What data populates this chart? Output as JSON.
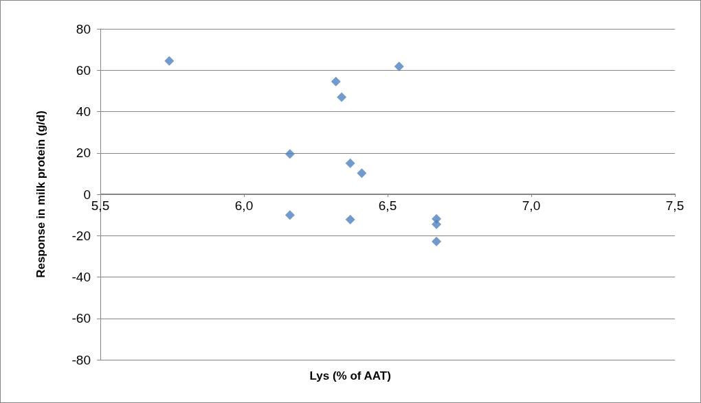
{
  "chart_data": {
    "type": "scatter",
    "xlabel": "Lys (% of AAT)",
    "ylabel": "Response in milk protein (g/d)",
    "x": [
      5.74,
      6.16,
      6.16,
      6.32,
      6.34,
      6.37,
      6.37,
      6.41,
      6.54,
      6.67,
      6.67,
      6.67
    ],
    "values": [
      64.5,
      19.5,
      -10,
      54.5,
      47,
      15,
      -12.2,
      10.2,
      61.8,
      -11.9,
      -14.5,
      -22.8
    ],
    "color": "#4f81bd",
    "marker": "diamond",
    "grid": "y",
    "xlim": [
      5.5,
      7.5
    ],
    "xticks": [
      {
        "value": 5.5,
        "label": "5,5"
      },
      {
        "value": 6.0,
        "label": "6,0"
      },
      {
        "value": 6.5,
        "label": "6,5"
      },
      {
        "value": 7.0,
        "label": "7,0"
      },
      {
        "value": 7.5,
        "label": "7,5"
      }
    ],
    "ylim": [
      -80,
      80
    ],
    "yticks": [
      -80,
      -60,
      -40,
      -20,
      0,
      20,
      40,
      60,
      80
    ]
  }
}
